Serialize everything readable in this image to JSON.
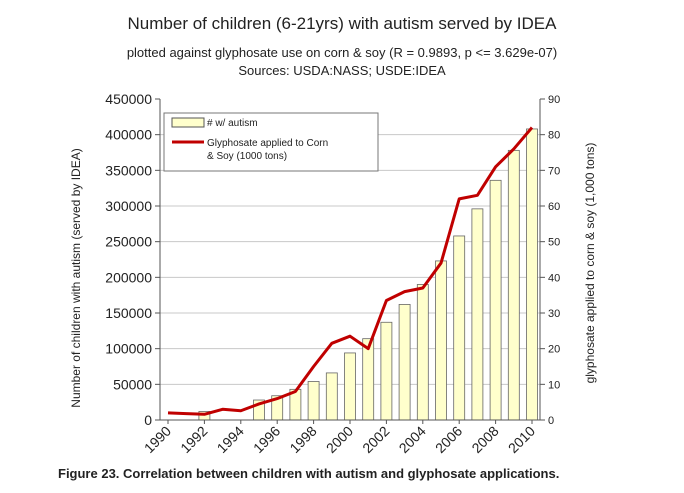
{
  "figure": {
    "title": "Number of children (6-21yrs) with autism served by IDEA",
    "subtitle": "plotted against glyphosate use on corn & soy (R = 0.9893, p <= 3.629e-07)",
    "sources": "Sources: USDA:NASS; USDE:IDEA",
    "caption": "Figure 23. Correlation between children with autism and glyphosate applications."
  },
  "chart_data": {
    "type": "bar",
    "title": "Number of children (6-21yrs) with autism served by IDEA",
    "x": [
      1990,
      1991,
      1992,
      1993,
      1994,
      1995,
      1996,
      1997,
      1998,
      1999,
      2000,
      2001,
      2002,
      2003,
      2004,
      2005,
      2006,
      2007,
      2008,
      2009,
      2010
    ],
    "x_tick_labels": [
      "1990",
      "1992",
      "1994",
      "1996",
      "1998",
      "2000",
      "2002",
      "2004",
      "2006",
      "2008",
      "2010"
    ],
    "ylabel": "Number of children with autism (served by IDEA)",
    "y2label": "glyphosate applied to corn & soy (1,000 tons)",
    "ylim": [
      0,
      450000
    ],
    "y2lim": [
      0,
      90
    ],
    "y_ticks": [
      "0",
      "50000",
      "100000",
      "150000",
      "200000",
      "250000",
      "300000",
      "350000",
      "400000",
      "450000"
    ],
    "y2_ticks": [
      "0",
      "10",
      "20",
      "30",
      "40",
      "50",
      "60",
      "70",
      "80",
      "90"
    ],
    "grid": true,
    "legend": "top-left",
    "series": [
      {
        "name": "# w/ autism",
        "kind": "bar",
        "color": "#ffffcc",
        "values": [
          null,
          null,
          12000,
          null,
          null,
          28000,
          34000,
          43000,
          54000,
          66000,
          94000,
          114000,
          137000,
          162000,
          190000,
          223000,
          258000,
          296000,
          336000,
          378000,
          408000
        ]
      },
      {
        "name": "Glyphosate applied to Corn & Soy (1000 tons)",
        "kind": "line",
        "axis": "right",
        "color": "#c00000",
        "values": [
          2,
          1.8,
          1.6,
          3,
          2.6,
          4.5,
          6,
          8,
          15,
          21.5,
          23.5,
          20,
          33.5,
          36,
          37,
          44,
          62,
          63,
          71,
          76,
          82
        ]
      }
    ]
  }
}
